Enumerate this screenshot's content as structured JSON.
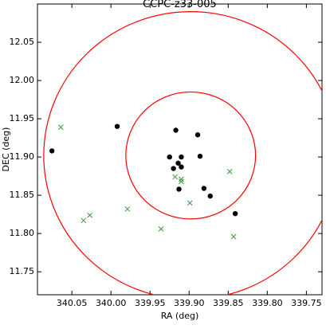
{
  "chart_data": {
    "type": "scatter",
    "title": "CCPC-z33-005",
    "xlabel": "RA (deg)",
    "ylabel": "DEC (deg)",
    "xlim": [
      340.094,
      339.73
    ],
    "ylim": [
      11.72,
      12.1
    ],
    "xticks": [
      {
        "value": 340.05,
        "label": "340.05"
      },
      {
        "value": 340.0,
        "label": "340.00"
      },
      {
        "value": 339.95,
        "label": "339.95"
      },
      {
        "value": 339.9,
        "label": "339.90"
      },
      {
        "value": 339.85,
        "label": "339.85"
      },
      {
        "value": 339.8,
        "label": "339.80"
      },
      {
        "value": 339.75,
        "label": "339.75"
      }
    ],
    "yticks": [
      {
        "value": 11.75,
        "label": "11.75"
      },
      {
        "value": 11.8,
        "label": "11.80"
      },
      {
        "value": 11.85,
        "label": "11.85"
      },
      {
        "value": 11.9,
        "label": "11.90"
      },
      {
        "value": 11.95,
        "label": "11.95"
      },
      {
        "value": 12.0,
        "label": "12.00"
      },
      {
        "value": 12.05,
        "label": "12.05"
      }
    ],
    "circles": {
      "color": "#ff0000",
      "center": [
        339.898,
        11.902
      ],
      "radii": [
        0.083,
        0.188
      ]
    },
    "series": [
      {
        "color": "#000000",
        "marker": "o",
        "x": [
          340.0755,
          339.992,
          339.917,
          339.925,
          339.91,
          339.92,
          339.914,
          339.91,
          339.913,
          339.889,
          339.886,
          339.881,
          339.873,
          339.841
        ],
        "values": [
          11.908,
          11.94,
          11.935,
          11.9,
          11.9,
          11.885,
          11.892,
          11.887,
          11.858,
          11.929,
          11.901,
          11.859,
          11.849,
          11.826
        ]
      },
      {
        "color": "#3a9a3a",
        "marker": "x",
        "x": [
          340.064,
          339.918,
          339.91,
          339.91,
          339.899,
          339.936,
          339.979,
          340.027,
          340.035,
          339.848,
          339.843
        ],
        "values": [
          11.939,
          11.874,
          11.871,
          11.868,
          11.84,
          11.806,
          11.832,
          11.824,
          11.817,
          11.881,
          11.796
        ]
      }
    ]
  }
}
